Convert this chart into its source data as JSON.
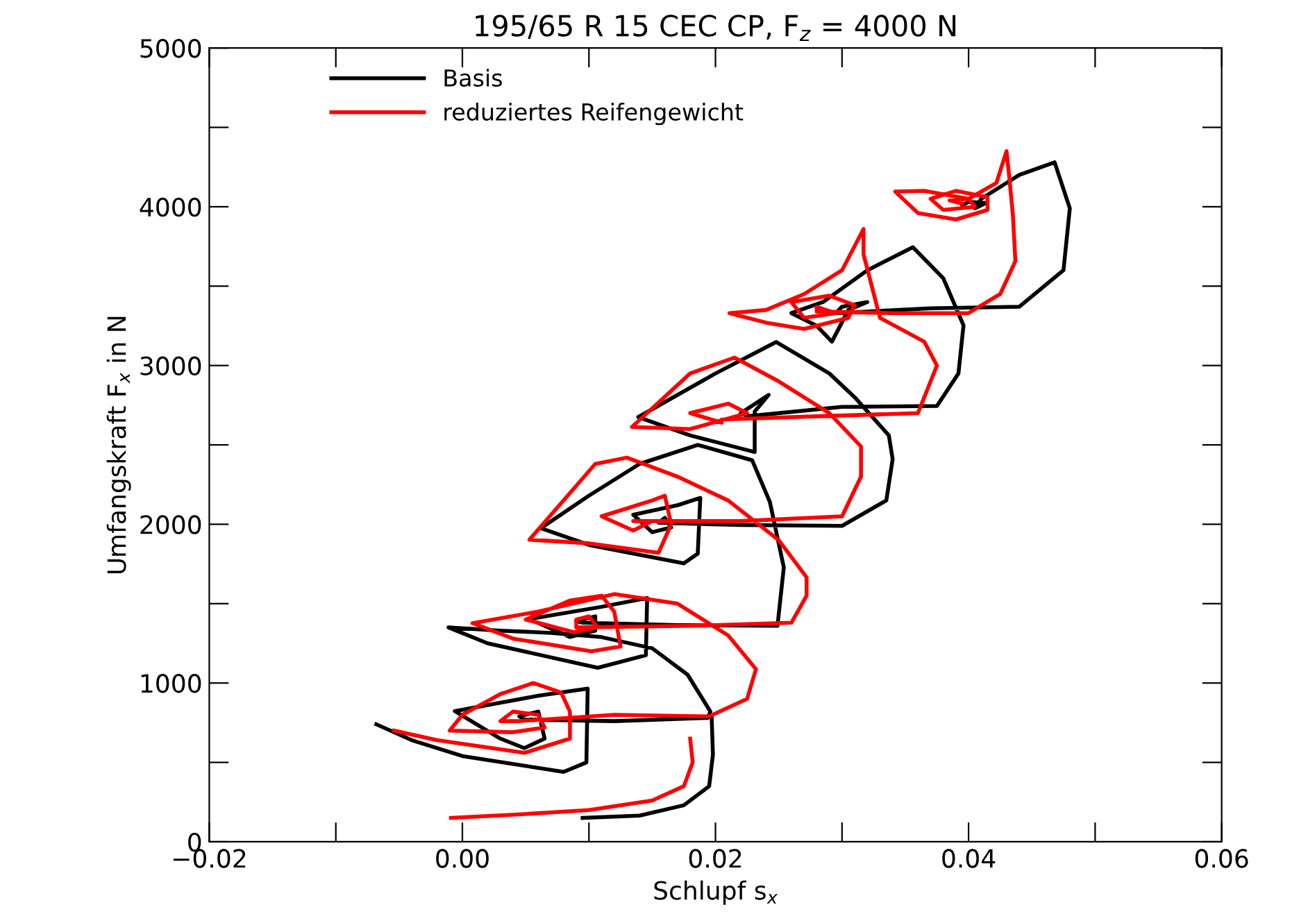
{
  "chart_data": {
    "type": "line",
    "title": "195/65 R 15 CEC CP, F$_{z}$ = 4000 N",
    "xlabel": "Schlupf s$_{x}$",
    "ylabel": "Umfangskraft F$_{x}$ in N",
    "xlim": [
      -0.02,
      0.06
    ],
    "ylim": [
      0,
      5000
    ],
    "xticks": [
      {
        "value": -0.02,
        "label": "−0.02"
      },
      {
        "value": -0.01,
        "label": null
      },
      {
        "value": 0.0,
        "label": "0.00"
      },
      {
        "value": 0.01,
        "label": null
      },
      {
        "value": 0.02,
        "label": "0.02"
      },
      {
        "value": 0.03,
        "label": null
      },
      {
        "value": 0.04,
        "label": "0.04"
      },
      {
        "value": 0.05,
        "label": null
      },
      {
        "value": 0.06,
        "label": "0.06"
      }
    ],
    "yticks": [
      0,
      {
        "value": 500,
        "label": null
      },
      1000,
      {
        "value": 1500,
        "label": null
      },
      2000,
      {
        "value": 2500,
        "label": null
      },
      3000,
      {
        "value": 3500,
        "label": null
      },
      4000,
      {
        "value": 4500,
        "label": null
      },
      5000
    ],
    "grid": false,
    "legend": "top left",
    "marker": "none",
    "line_style": "solid",
    "series": [
      {
        "name": "Basis",
        "color": "#000000",
        "x": [
          0.0095,
          0.014,
          0.0175,
          0.0195,
          0.0198,
          0.0197,
          null,
          -0.0068,
          -0.004,
          0.0,
          0.008,
          0.0098,
          0.0099,
          0.006,
          -0.0006,
          0.003,
          0.0049,
          0.0065,
          0.006,
          0.0045,
          0.005,
          0.012,
          0.0194,
          0.0196,
          0.0178,
          0.015,
          0.011,
          0.007,
          0.003,
          -0.0011,
          0.002,
          0.0107,
          0.0145,
          0.0146,
          0.011,
          0.0053,
          0.0085,
          0.0105,
          0.0105,
          0.009,
          0.0095,
          0.017,
          0.0249,
          0.0254,
          0.0243,
          0.0229,
          0.0186,
          0.014,
          0.01,
          0.0062,
          0.01,
          0.0175,
          0.0186,
          0.0188,
          0.017,
          0.0135,
          0.015,
          0.0165,
          0.016,
          0.0155,
          0.022,
          0.03,
          0.0335,
          0.034,
          0.0337,
          0.031,
          0.029,
          0.0248,
          0.02,
          0.0139,
          0.018,
          0.0231,
          0.0231,
          0.0242,
          0.022,
          0.0225,
          0.03,
          0.0375,
          0.0392,
          0.0396,
          0.038,
          0.0356,
          0.032,
          0.0285,
          0.026,
          0.028,
          0.0292,
          0.0305,
          0.032,
          0.03,
          0.0295,
          0.037,
          0.044,
          0.0475,
          0.048,
          0.0468,
          0.044,
          0.041,
          0.0405,
          0.0414,
          0.04,
          0.0395
        ],
        "values": [
          150,
          165,
          230,
          350,
          550,
          780,
          null,
          740,
          640,
          540,
          440,
          500,
          965,
          920,
          823,
          650,
          590,
          650,
          820,
          790,
          770,
          760,
          780,
          820,
          1052,
          1219,
          1289,
          1316,
          1330,
          1350,
          1250,
          1096,
          1175,
          1535,
          1480,
          1403,
          1290,
          1330,
          1420,
          1390,
          1380,
          1365,
          1360,
          1728,
          2140,
          2403,
          2500,
          2380,
          2180,
          1975,
          1870,
          1754,
          1815,
          2166,
          2120,
          2060,
          1950,
          1980,
          2040,
          2010,
          1995,
          1990,
          2150,
          2410,
          2560,
          2800,
          2950,
          3148,
          2950,
          2675,
          2560,
          2455,
          2710,
          2815,
          2700,
          2680,
          2740,
          2745,
          2950,
          3253,
          3550,
          3745,
          3600,
          3400,
          3330,
          3250,
          3150,
          3350,
          3400,
          3370,
          3330,
          3360,
          3370,
          3600,
          3990,
          4280,
          4200,
          4050,
          3990,
          4025,
          4030,
          4010
        ]
      },
      {
        "name": "reduziertes Reifengewicht",
        "color": "#ff0000",
        "x": [
          -0.0009,
          0.004,
          0.01,
          0.015,
          0.0175,
          0.0182,
          0.018,
          null,
          -0.0054,
          -0.002,
          0.0049,
          0.0085,
          0.0085,
          0.0078,
          0.0056,
          0.003,
          0.0,
          -0.001,
          0.004,
          0.0065,
          0.006,
          0.004,
          0.003,
          0.0045,
          0.012,
          0.0195,
          0.0225,
          0.0232,
          0.021,
          0.017,
          0.012,
          0.006,
          0.0008,
          0.004,
          0.0102,
          0.0125,
          0.012,
          0.011,
          0.0085,
          0.005,
          0.0088,
          0.0107,
          0.01,
          0.009,
          0.009,
          0.018,
          0.026,
          0.0272,
          0.0272,
          0.025,
          0.021,
          0.017,
          0.013,
          0.0105,
          0.0053,
          0.01,
          0.0155,
          0.0165,
          0.016,
          0.015,
          0.011,
          0.0135,
          0.015,
          0.0135,
          0.022,
          0.03,
          0.0315,
          0.0315,
          0.029,
          0.025,
          0.0215,
          0.018,
          0.0134,
          0.018,
          0.0225,
          0.021,
          0.018,
          0.0205,
          0.0205,
          0.028,
          0.036,
          0.0375,
          0.0365,
          0.033,
          0.0317,
          0.0317,
          0.03,
          0.027,
          0.024,
          0.0211,
          0.024,
          0.027,
          0.0305,
          0.031,
          0.029,
          0.026,
          0.027,
          0.0295,
          0.028,
          0.028,
          0.034,
          0.04,
          0.0425,
          0.0437,
          0.0435,
          0.0432,
          0.043,
          0.0422,
          0.04,
          0.0365,
          0.0342,
          0.036,
          0.039,
          0.0415,
          0.0415,
          0.039,
          0.037,
          0.038,
          0.0405,
          0.04,
          0.0385,
          0.0395
        ],
        "values": [
          150,
          170,
          200,
          260,
          350,
          500,
          650,
          null,
          700,
          640,
          560,
          650,
          820,
          940,
          1000,
          930,
          800,
          700,
          690,
          720,
          800,
          820,
          760,
          760,
          800,
          790,
          900,
          1087,
          1300,
          1500,
          1560,
          1450,
          1377,
          1280,
          1200,
          1230,
          1450,
          1550,
          1520,
          1400,
          1320,
          1350,
          1420,
          1400,
          1350,
          1360,
          1380,
          1550,
          1666,
          1900,
          2150,
          2300,
          2420,
          2380,
          1903,
          1880,
          1820,
          2000,
          2180,
          2150,
          2050,
          1960,
          2020,
          2020,
          2020,
          2050,
          2300,
          2490,
          2700,
          2900,
          3050,
          2950,
          2613,
          2600,
          2700,
          2760,
          2700,
          2640,
          2660,
          2680,
          2700,
          3000,
          3150,
          3300,
          3700,
          3860,
          3600,
          3450,
          3350,
          3330,
          3270,
          3230,
          3300,
          3380,
          3440,
          3400,
          3300,
          3330,
          3370,
          3340,
          3330,
          3330,
          3450,
          3657,
          3950,
          4200,
          4350,
          4150,
          4050,
          4100,
          4096,
          3960,
          3920,
          3980,
          4060,
          4100,
          4050,
          3980,
          4000,
          4050,
          4040,
          4020
        ]
      }
    ]
  }
}
